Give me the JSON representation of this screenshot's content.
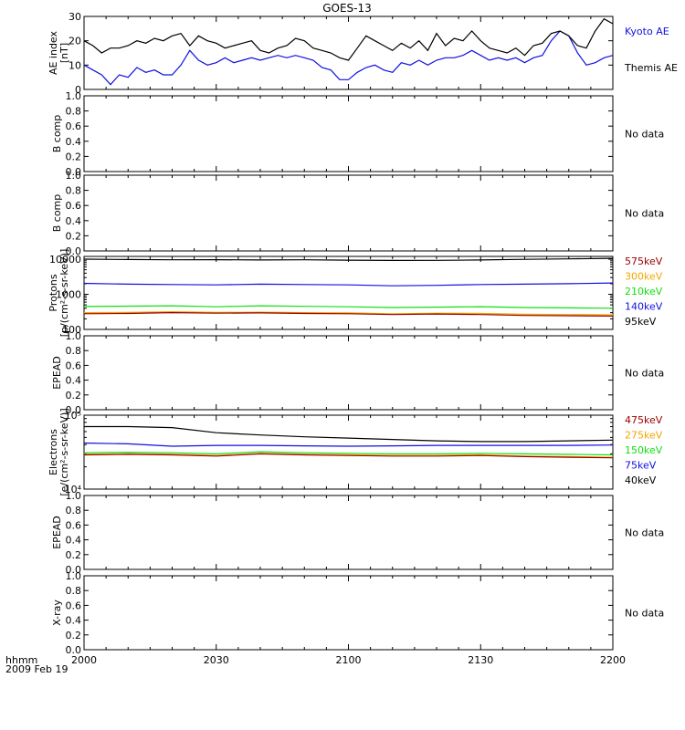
{
  "page_title": "GOES-13",
  "x_axis": {
    "corner_labels": [
      "hhmm",
      "2009 Feb 19"
    ],
    "ticks": [
      "2000",
      "2030",
      "2100",
      "2130",
      "2200"
    ],
    "range_min": [
      0,
      120
    ]
  },
  "colors": {
    "black": "#000000",
    "blue": "#1010e0",
    "green": "#10e010",
    "orange": "#f0a800",
    "red": "#9a0000"
  },
  "chart_data": [
    {
      "type": "line",
      "ylabel": [
        "AE index",
        "[nT]"
      ],
      "yscale": "linear",
      "ylim": [
        0,
        30
      ],
      "ytick_labels": [
        "0",
        "10",
        "20",
        "30"
      ],
      "ytick_values": [
        0,
        10,
        20,
        30
      ],
      "legend": [
        "Kyoto AE",
        "Themis AE"
      ],
      "series": [
        {
          "name": "Kyoto AE",
          "color": "#1010e0",
          "x": [
            0,
            2,
            4,
            6,
            8,
            10,
            12,
            14,
            16,
            18,
            20,
            22,
            24,
            26,
            28,
            30,
            32,
            34,
            36,
            38,
            40,
            42,
            44,
            46,
            48,
            50,
            52,
            54,
            56,
            58,
            60,
            62,
            64,
            66,
            68,
            70,
            72,
            74,
            76,
            78,
            80,
            82,
            84,
            86,
            88,
            90,
            92,
            94,
            96,
            98,
            100,
            102,
            104,
            106,
            108,
            110,
            112,
            114,
            116,
            118,
            120
          ],
          "y": [
            10,
            8,
            6,
            2,
            6,
            5,
            9,
            7,
            8,
            6,
            6,
            10,
            16,
            12,
            10,
            11,
            13,
            11,
            12,
            13,
            12,
            13,
            14,
            13,
            14,
            13,
            12,
            9,
            8,
            4,
            4,
            7,
            9,
            10,
            8,
            7,
            11,
            10,
            12,
            10,
            12,
            13,
            13,
            14,
            16,
            14,
            12,
            13,
            12,
            13,
            11,
            13,
            14,
            20,
            24,
            22,
            15,
            10,
            11,
            13,
            14
          ]
        },
        {
          "name": "Themis AE",
          "color": "#000000",
          "x": [
            0,
            2,
            4,
            6,
            8,
            10,
            12,
            14,
            16,
            18,
            20,
            22,
            24,
            26,
            28,
            30,
            32,
            34,
            36,
            38,
            40,
            42,
            44,
            46,
            48,
            50,
            52,
            54,
            56,
            58,
            60,
            62,
            64,
            66,
            68,
            70,
            72,
            74,
            76,
            78,
            80,
            82,
            84,
            86,
            88,
            90,
            92,
            94,
            96,
            98,
            100,
            102,
            104,
            106,
            108,
            110,
            112,
            114,
            116,
            118,
            120
          ],
          "y": [
            20,
            18,
            15,
            17,
            17,
            18,
            20,
            19,
            21,
            20,
            22,
            23,
            18,
            22,
            20,
            19,
            17,
            18,
            19,
            20,
            16,
            15,
            17,
            18,
            21,
            20,
            17,
            16,
            15,
            13,
            12,
            17,
            22,
            20,
            18,
            16,
            19,
            17,
            20,
            16,
            23,
            18,
            21,
            20,
            24,
            20,
            17,
            16,
            15,
            17,
            14,
            18,
            19,
            23,
            24,
            22,
            18,
            17,
            24,
            29,
            27
          ]
        }
      ]
    },
    {
      "type": "line",
      "ylabel": [
        "B comp"
      ],
      "yscale": "linear",
      "ylim": [
        0,
        1.0
      ],
      "ytick_labels": [
        "0.0",
        "0.2",
        "0.4",
        "0.6",
        "0.8",
        "1.0"
      ],
      "ytick_values": [
        0,
        0.2,
        0.4,
        0.6,
        0.8,
        1.0
      ],
      "series": [],
      "note": "No data"
    },
    {
      "type": "line",
      "ylabel": [
        "B comp"
      ],
      "yscale": "linear",
      "ylim": [
        0,
        1.0
      ],
      "ytick_labels": [
        "0.0",
        "0.2",
        "0.4",
        "0.6",
        "0.8",
        "1.0"
      ],
      "ytick_values": [
        0,
        0.2,
        0.4,
        0.6,
        0.8,
        1.0
      ],
      "series": [],
      "note": "No data"
    },
    {
      "type": "line",
      "ylabel": [
        "Protons",
        "[p/(cm²-s-sr-keV)]"
      ],
      "yscale": "log",
      "ylim": [
        100,
        12000
      ],
      "ytick_labels": [
        "100",
        "1000",
        "10000"
      ],
      "ytick_values": [
        100,
        1000,
        10000
      ],
      "legend": [
        "575keV",
        "300keV",
        "210keV",
        "140keV",
        "95keV"
      ],
      "series": [
        {
          "name": "95keV",
          "color": "#000000",
          "x": [
            0,
            10,
            20,
            30,
            40,
            50,
            60,
            70,
            80,
            90,
            100,
            110,
            120
          ],
          "y": [
            10000,
            9800,
            9600,
            9700,
            9500,
            9600,
            9400,
            9200,
            9300,
            9500,
            9900,
            10200,
            10600
          ]
        },
        {
          "name": "140keV",
          "color": "#1010e0",
          "x": [
            0,
            10,
            20,
            30,
            40,
            50,
            60,
            70,
            80,
            90,
            100,
            110,
            120
          ],
          "y": [
            2050,
            1950,
            1900,
            1850,
            1950,
            1900,
            1850,
            1750,
            1800,
            1900,
            1950,
            2000,
            2100
          ]
        },
        {
          "name": "210keV",
          "color": "#10e010",
          "x": [
            0,
            10,
            20,
            30,
            40,
            50,
            60,
            70,
            80,
            90,
            100,
            110,
            120
          ],
          "y": [
            450,
            460,
            470,
            440,
            470,
            455,
            440,
            420,
            430,
            445,
            420,
            410,
            400
          ]
        },
        {
          "name": "300keV",
          "color": "#f0a800",
          "x": [
            0,
            10,
            20,
            30,
            40,
            50,
            60,
            70,
            80,
            90,
            100,
            110,
            120
          ],
          "y": [
            300,
            305,
            320,
            305,
            310,
            300,
            295,
            280,
            290,
            285,
            270,
            265,
            260
          ]
        },
        {
          "name": "575keV",
          "color": "#9a0000",
          "x": [
            0,
            10,
            20,
            30,
            40,
            50,
            60,
            70,
            80,
            90,
            100,
            110,
            120
          ],
          "y": [
            280,
            285,
            300,
            290,
            295,
            285,
            280,
            265,
            275,
            265,
            250,
            245,
            240
          ]
        }
      ]
    },
    {
      "type": "line",
      "ylabel": [
        "EPEAD"
      ],
      "yscale": "linear",
      "ylim": [
        0,
        1.0
      ],
      "ytick_labels": [
        "0.0",
        "0.2",
        "0.4",
        "0.6",
        "0.8",
        "1.0"
      ],
      "ytick_values": [
        0,
        0.2,
        0.4,
        0.6,
        0.8,
        1.0
      ],
      "series": [],
      "note": "No data"
    },
    {
      "type": "line",
      "ylabel": [
        "Electrons",
        "[e/(cm²-s-sr-keV)]"
      ],
      "yscale": "log",
      "ylim": [
        10000,
        100000
      ],
      "ytick_labels": [
        "10⁴",
        "10⁵"
      ],
      "ytick_values": [
        10000,
        100000
      ],
      "legend": [
        "475keV",
        "275keV",
        "150keV",
        "75keV",
        "40keV"
      ],
      "series": [
        {
          "name": "40keV",
          "color": "#000000",
          "x": [
            0,
            10,
            20,
            30,
            40,
            50,
            60,
            70,
            80,
            90,
            100,
            110,
            120
          ],
          "y": [
            70000,
            70000,
            68000,
            58000,
            54000,
            51000,
            49000,
            47000,
            45000,
            44000,
            44000,
            45000,
            46000
          ]
        },
        {
          "name": "75keV",
          "color": "#1010e0",
          "x": [
            0,
            10,
            20,
            30,
            40,
            50,
            60,
            70,
            80,
            90,
            100,
            110,
            120
          ],
          "y": [
            42000,
            41000,
            38000,
            39000,
            39000,
            38500,
            38000,
            38500,
            39000,
            39000,
            39000,
            39000,
            39500
          ]
        },
        {
          "name": "150keV",
          "color": "#10e010",
          "x": [
            0,
            10,
            20,
            30,
            40,
            50,
            60,
            70,
            80,
            90,
            100,
            110,
            120
          ],
          "y": [
            31000,
            31500,
            31000,
            30000,
            32000,
            31000,
            30500,
            30000,
            30000,
            30500,
            30000,
            29500,
            29000
          ]
        },
        {
          "name": "275keV",
          "color": "#f0a800",
          "x": [
            0,
            10,
            20,
            30,
            40,
            50,
            60,
            70,
            80,
            90,
            100,
            110,
            120
          ],
          "y": [
            29500,
            30000,
            29500,
            28500,
            30500,
            29500,
            29000,
            28500,
            28500,
            29000,
            28000,
            27500,
            27000
          ]
        },
        {
          "name": "475keV",
          "color": "#9a0000",
          "x": [
            0,
            10,
            20,
            30,
            40,
            50,
            60,
            70,
            80,
            90,
            100,
            110,
            120
          ],
          "y": [
            29000,
            29500,
            29000,
            28000,
            30000,
            29000,
            28500,
            28000,
            28000,
            28500,
            27500,
            27000,
            26500
          ]
        }
      ]
    },
    {
      "type": "line",
      "ylabel": [
        "EPEAD"
      ],
      "yscale": "linear",
      "ylim": [
        0,
        1.0
      ],
      "ytick_labels": [
        "0.0",
        "0.2",
        "0.4",
        "0.6",
        "0.8",
        "1.0"
      ],
      "ytick_values": [
        0,
        0.2,
        0.4,
        0.6,
        0.8,
        1.0
      ],
      "series": [],
      "note": "No data"
    },
    {
      "type": "line",
      "ylabel": [
        "X-ray"
      ],
      "yscale": "linear",
      "ylim": [
        0,
        1.0
      ],
      "ytick_labels": [
        "0.0",
        "0.2",
        "0.4",
        "0.6",
        "0.8",
        "1.0"
      ],
      "ytick_values": [
        0,
        0.2,
        0.4,
        0.6,
        0.8,
        1.0
      ],
      "series": [],
      "note": "No data"
    }
  ]
}
